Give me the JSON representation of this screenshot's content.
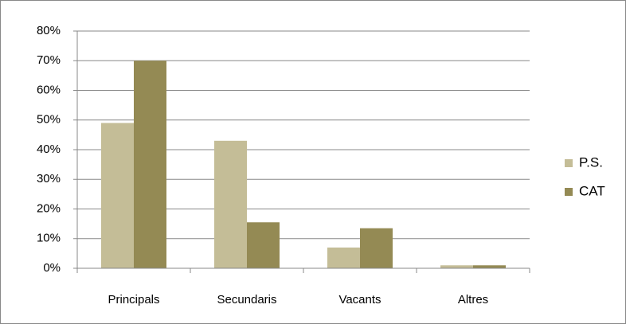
{
  "chart_data": {
    "type": "bar",
    "categories": [
      "Principals",
      "Secundaris",
      "Vacants",
      "Altres"
    ],
    "series": [
      {
        "name": "P.S.",
        "color": "#c4bd97",
        "values": [
          49,
          43,
          7,
          1
        ]
      },
      {
        "name": "CAT",
        "color": "#948a54",
        "values": [
          70,
          15.5,
          13.5,
          1
        ]
      }
    ],
    "ylim": [
      0,
      80
    ],
    "yticks": [
      {
        "value": 0,
        "label": "0%"
      },
      {
        "value": 10,
        "label": "10%"
      },
      {
        "value": 20,
        "label": "20%"
      },
      {
        "value": 30,
        "label": "30%"
      },
      {
        "value": 40,
        "label": "40%"
      },
      {
        "value": 50,
        "label": "50%"
      },
      {
        "value": 60,
        "label": "60%"
      },
      {
        "value": 70,
        "label": "70%"
      },
      {
        "value": 80,
        "label": "80%"
      }
    ],
    "grid": true,
    "legend": "right"
  }
}
